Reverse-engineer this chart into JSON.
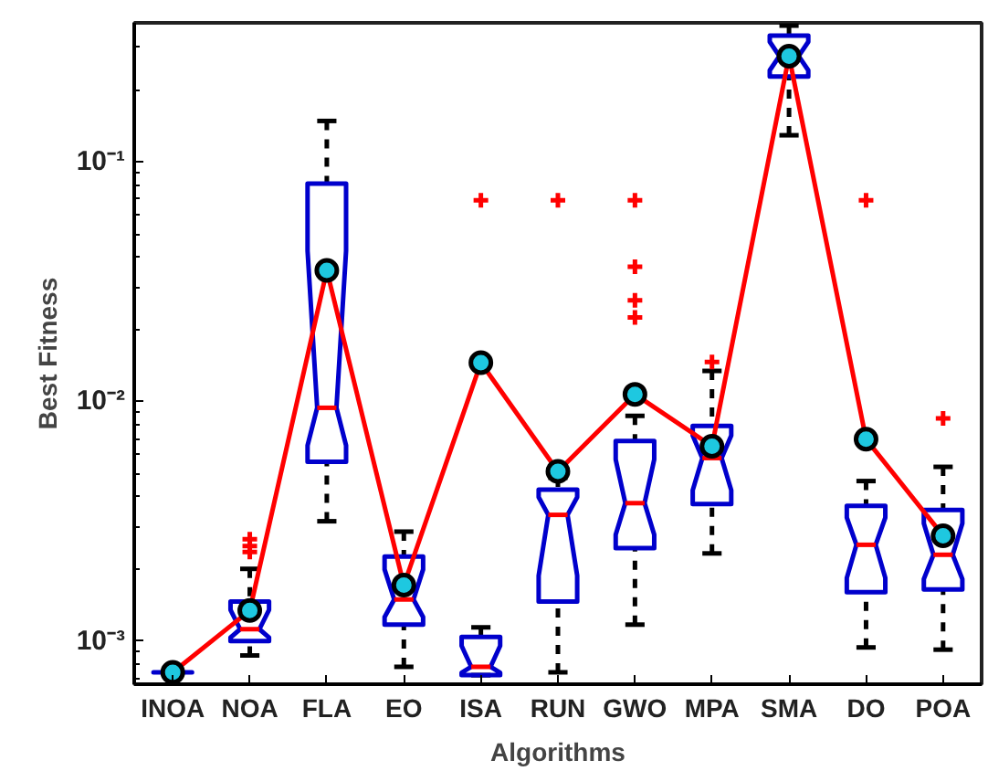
{
  "chart_data": {
    "type": "box",
    "xlabel": "Algorithms",
    "ylabel": "Best Fitness",
    "log": "y",
    "grid": false,
    "categories": [
      "INOA",
      "NOA",
      "FLA",
      "EO",
      "ISA",
      "RUN",
      "GWO",
      "MPA",
      "SMA",
      "DO",
      "POA"
    ],
    "ylim": [
      0.00066,
      0.38
    ],
    "yticks": [
      {
        "value": 0.001,
        "label": "10⁻³"
      },
      {
        "value": 0.01,
        "label": "10⁻²"
      },
      {
        "value": 0.1,
        "label": "10⁻¹"
      }
    ],
    "series": [
      {
        "color": "#0000cc",
        "boxes": [
          {
            "low": 0.00074,
            "q1": 0.00074,
            "median": 0.00074,
            "q3": 0.00074,
            "high": 0.00074
          },
          {
            "low": 0.00087,
            "q1": 0.001,
            "median": 0.00112,
            "q3": 0.00146,
            "high": 0.002,
            "outliers": [
              0.00266,
              0.00249,
              0.00235
            ]
          },
          {
            "low": 0.00316,
            "q1": 0.0056,
            "median": 0.0094,
            "q3": 0.081,
            "high": 0.148
          },
          {
            "low": 0.00078,
            "q1": 0.00117,
            "median": 0.00149,
            "q3": 0.00225,
            "high": 0.00286
          },
          {
            "low": 0.00072,
            "q1": 0.00072,
            "median": 0.00078,
            "q3": 0.00104,
            "high": 0.00114,
            "outliers": [
              0.069
            ]
          },
          {
            "low": 0.00074,
            "q1": 0.00146,
            "median": 0.00336,
            "q3": 0.00428,
            "high": 0.0048,
            "outliers": [
              0.069
            ]
          },
          {
            "low": 0.00117,
            "q1": 0.00244,
            "median": 0.00376,
            "q3": 0.00684,
            "high": 0.0087,
            "outliers": [
              0.069,
              0.0365,
              0.0264,
              0.0224
            ]
          },
          {
            "low": 0.00232,
            "q1": 0.00373,
            "median": 0.0058,
            "q3": 0.0079,
            "high": 0.0134,
            "outliers": [
              0.0146
            ]
          },
          {
            "low": 0.129,
            "q1": 0.227,
            "median": 0.276,
            "q3": 0.336,
            "high": 0.37
          },
          {
            "low": 0.00094,
            "q1": 0.0016,
            "median": 0.00252,
            "q3": 0.00366,
            "high": 0.00465,
            "outliers": [
              0.069
            ]
          },
          {
            "low": 0.00092,
            "q1": 0.00164,
            "median": 0.00229,
            "q3": 0.00352,
            "high": 0.00533,
            "outliers": [
              0.0085
            ]
          }
        ]
      },
      {
        "type": "line",
        "color": "#ff0000",
        "marker": "circle",
        "values": [
          0.00074,
          0.00134,
          0.0352,
          0.00171,
          0.0145,
          0.0051,
          0.0107,
          0.0065,
          0.276,
          0.00695,
          0.00275
        ]
      }
    ]
  }
}
